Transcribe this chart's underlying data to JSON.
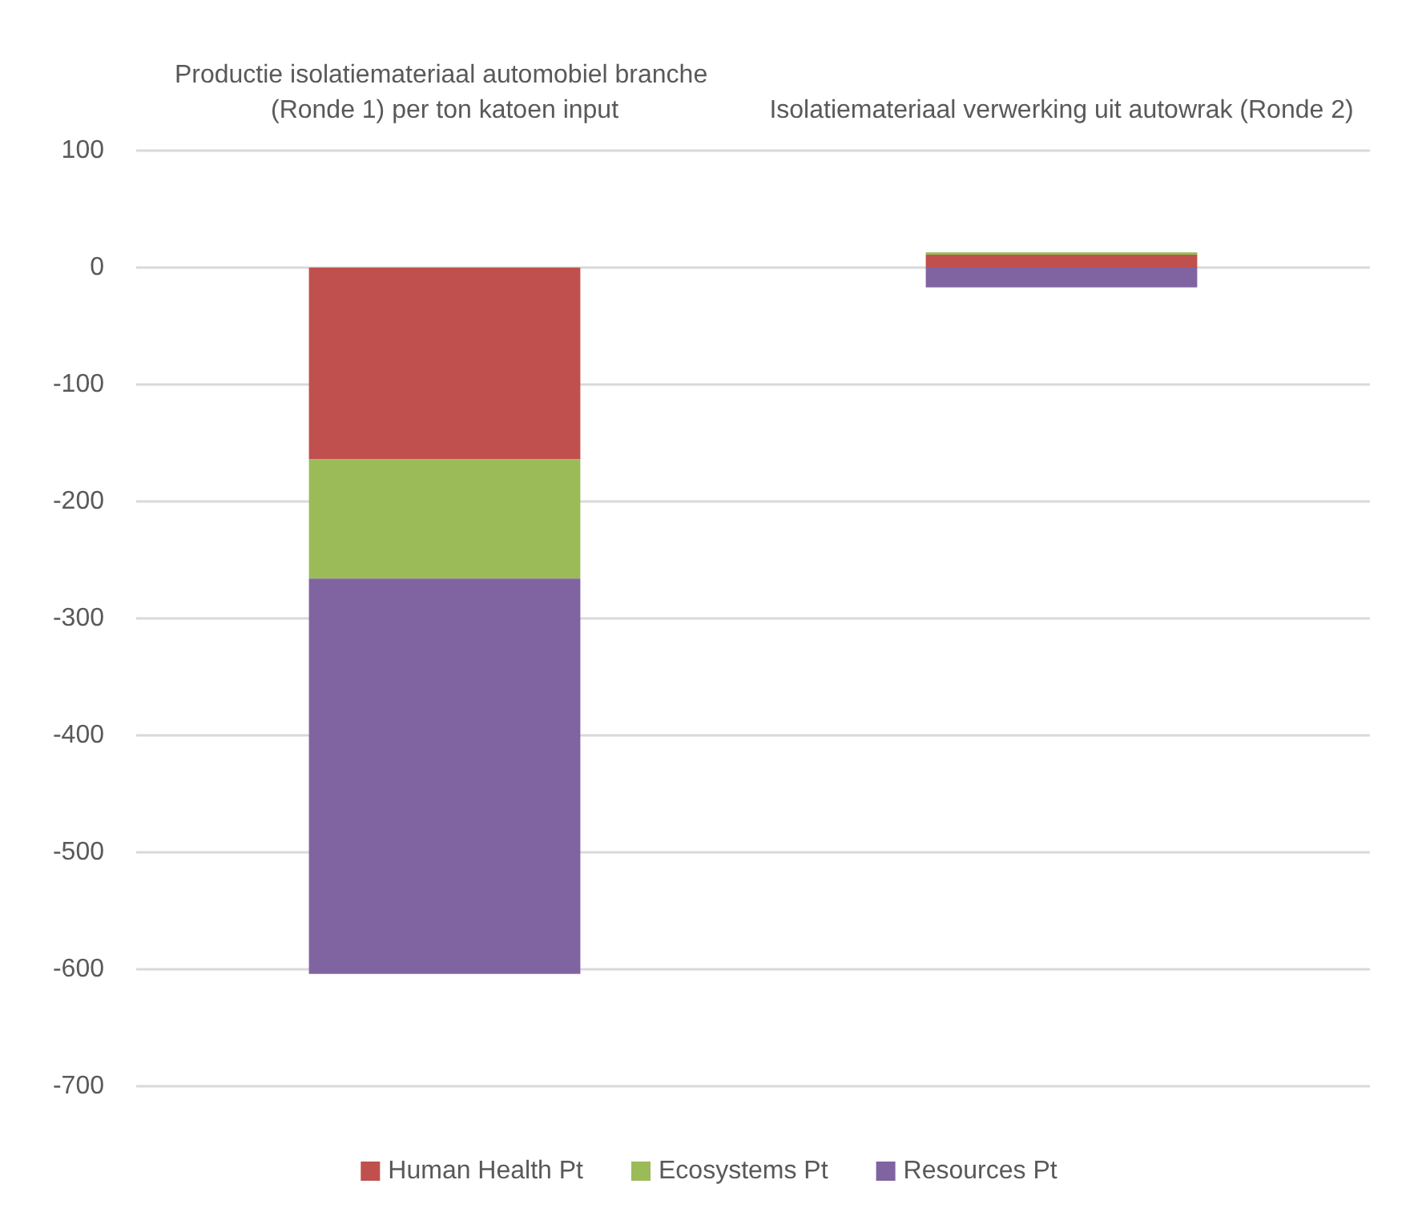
{
  "chart_data": {
    "type": "bar",
    "stacked": true,
    "categories": [
      "Productie isolatiemateriaal automobiel branche (Ronde 1) per ton katoen input",
      "Isolatiemateriaal verwerking uit autowrak (Ronde 2)"
    ],
    "series": [
      {
        "name": "Human Health Pt",
        "color": "#c0504d",
        "values": [
          -164,
          11
        ]
      },
      {
        "name": "Ecosystems Pt",
        "color": "#9bbb59",
        "values": [
          -102,
          2
        ]
      },
      {
        "name": "Resources Pt",
        "color": "#8064a2",
        "values": [
          -338,
          -17
        ]
      }
    ],
    "ylim": [
      -700,
      100
    ],
    "yticks": [
      -700,
      -600,
      -500,
      -400,
      -300,
      -200,
      -100,
      0,
      100
    ],
    "grid": "y",
    "legend": "bottom"
  }
}
